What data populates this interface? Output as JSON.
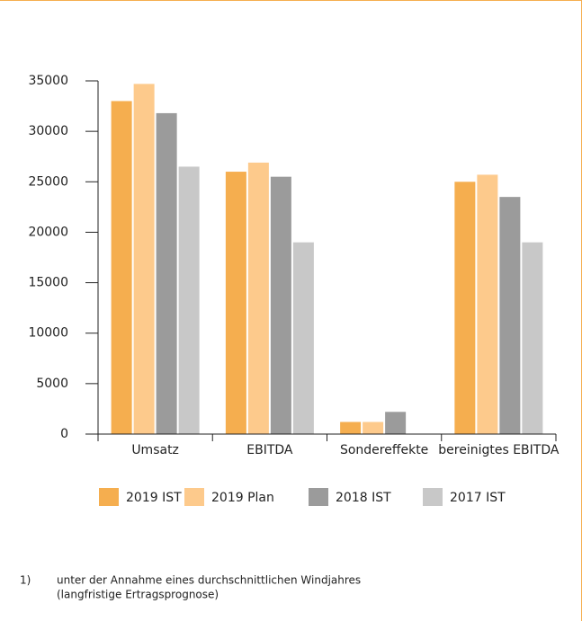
{
  "chart_data": {
    "type": "bar",
    "categories": [
      "Umsatz",
      "EBITDA",
      "Sondereffekte",
      "bereinigtes EBITDA"
    ],
    "series": [
      {
        "name": "2019 IST",
        "color": "#f5ae4f",
        "values": [
          33000,
          26000,
          1200,
          25000
        ]
      },
      {
        "name": "2019 Plan",
        "color": "#fdca8c",
        "values": [
          34700,
          26900,
          1200,
          25700
        ]
      },
      {
        "name": "2018 IST",
        "color": "#9b9b9b",
        "values": [
          31800,
          25500,
          2200,
          23500
        ]
      },
      {
        "name": "2017 IST",
        "color": "#c8c8c8",
        "values": [
          26500,
          19000,
          0,
          19000
        ]
      }
    ],
    "ylim": [
      0,
      35000
    ],
    "yticks": [
      0,
      5000,
      10000,
      15000,
      20000,
      25000,
      30000,
      35000
    ],
    "grid": false,
    "legend": "bottom"
  },
  "footnote": {
    "marker": "1)",
    "lines": [
      "unter der Annahme eines durchschnittlichen Windjahres",
      "(langfristige Ertragsprognose)"
    ]
  }
}
